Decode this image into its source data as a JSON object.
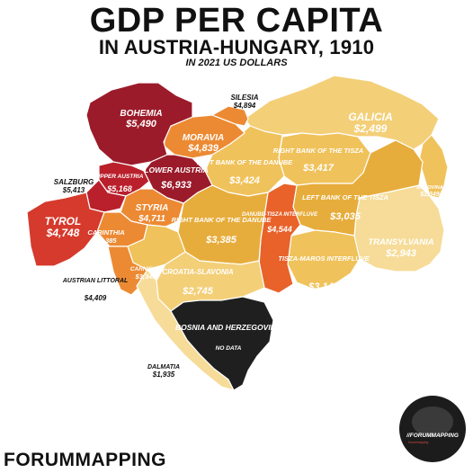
{
  "title": {
    "line1": "GDP PER CAPITA",
    "line2": "IN AUSTRIA-HUNGARY, 1910",
    "line3": "IN 2021 US DOLLARS"
  },
  "colors": {
    "darkest": "#9b1b2a",
    "dark_red": "#b9202b",
    "red": "#d53a2c",
    "orange_red": "#e8622a",
    "orange": "#ec8a33",
    "orange_light": "#f09a3a",
    "mustard": "#e7ad3c",
    "yellow": "#f0c25b",
    "pale": "#f3cf78",
    "palest": "#f6dc98",
    "no_data": "#1f1f1f"
  },
  "regions": [
    {
      "name": "BOHEMIA",
      "value": "$5,490"
    },
    {
      "name": "SILESIA",
      "value": "$4,894"
    },
    {
      "name": "MORAVIA",
      "value": "$4,839"
    },
    {
      "name": "GALICIA",
      "value": "$2,499"
    },
    {
      "name": "BUKOVINA",
      "value": "$2,349"
    },
    {
      "name": "UPPER AUSTRIA",
      "value": "$5,168"
    },
    {
      "name": "LOWER AUSTRIA",
      "value": "$6,933"
    },
    {
      "name": "SALZBURG",
      "value": "$5,413"
    },
    {
      "name": "TYROL",
      "value": "$4,748"
    },
    {
      "name": "STYRIA",
      "value": "$4,711"
    },
    {
      "name": "CARINTHIA",
      "value": "$4,385"
    },
    {
      "name": "CARNIOLA",
      "value": "$3,345"
    },
    {
      "name": "AUSTRIAN LITTORAL",
      "value": "$4,409"
    },
    {
      "name": "LEFT BANK OF THE DANUBE",
      "value": "$3,424"
    },
    {
      "name": "RIGHT BANK OF THE DANUBE",
      "value": "$3,385"
    },
    {
      "name": "RIGHT BANK OF THE TISZA",
      "value": "$3,417"
    },
    {
      "name": "LEFT BANK OF THE TISZA",
      "value": "$3,035"
    },
    {
      "name": "DANUBE-TISZA INTERFLUVE",
      "value": "$4,544"
    },
    {
      "name": "TISZA-MAROS INTERFLUVE",
      "value": "$3,147"
    },
    {
      "name": "TRANSYLVANIA",
      "value": "$2,943"
    },
    {
      "name": "CROATIA-SLAVONIA",
      "value": "$2,745"
    },
    {
      "name": "DALMATIA",
      "value": "$1,935"
    },
    {
      "name": "BOSNIA AND HERZEGOVINA",
      "value": "NO DATA"
    }
  ],
  "footer": {
    "brand": "FORUMMAPPING"
  },
  "logo": {
    "text": "//FORUMMAPPING",
    "subtext": "forummapping"
  }
}
